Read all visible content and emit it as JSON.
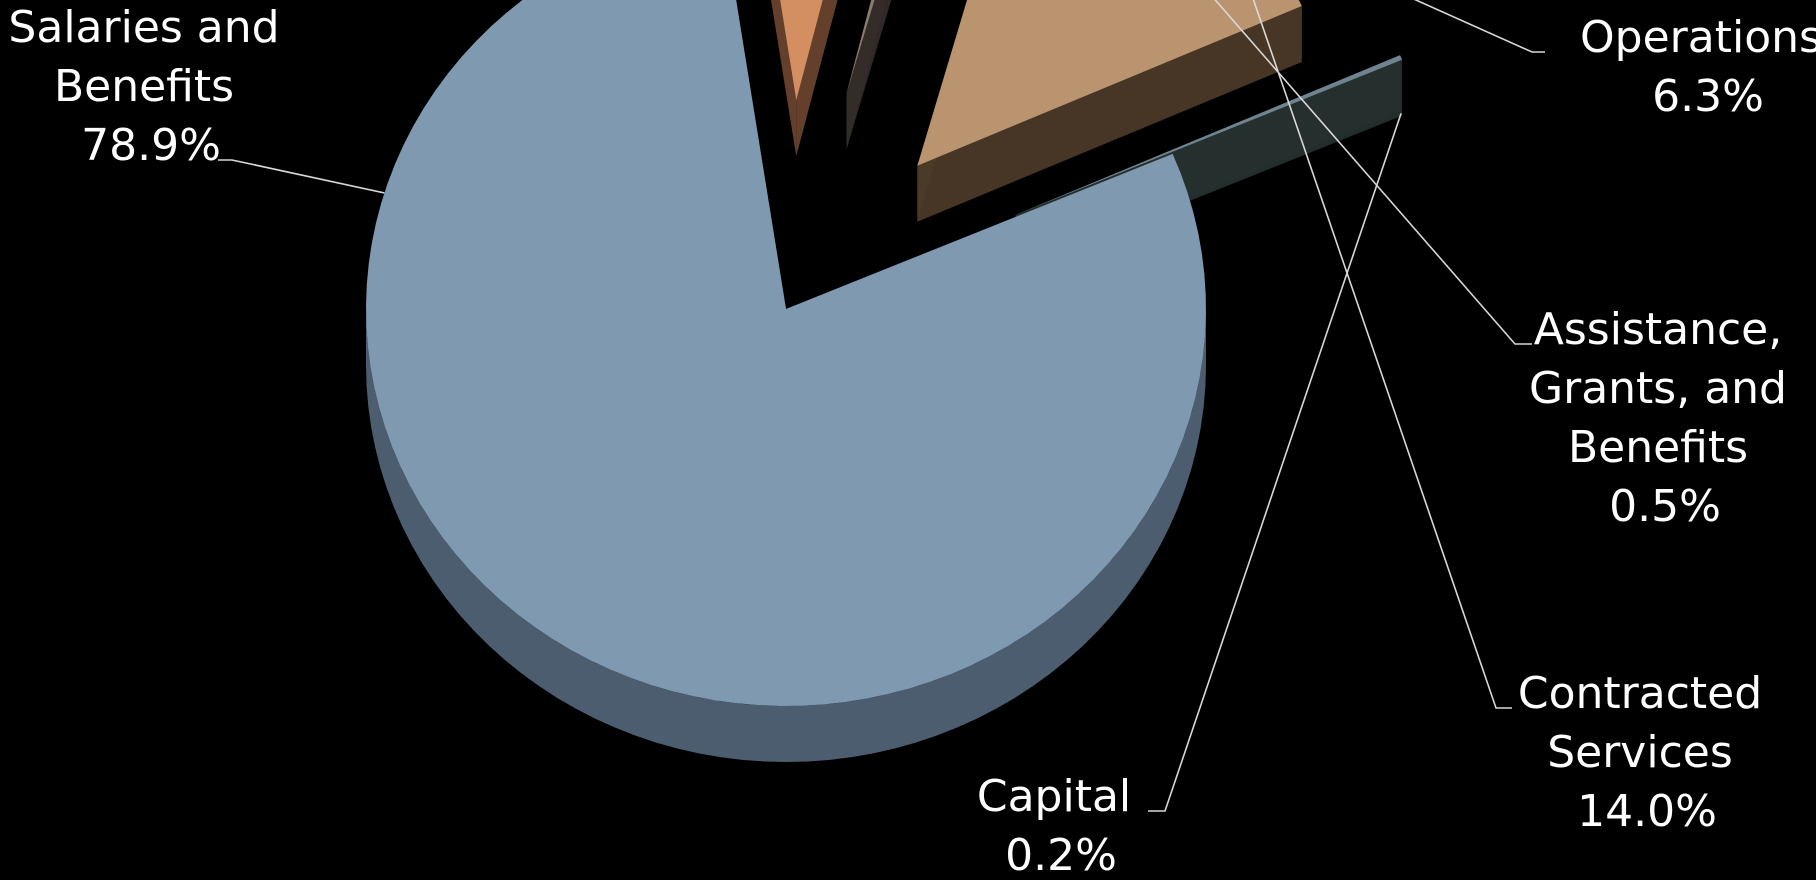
{
  "chart_data": {
    "type": "pie",
    "style": "3d-exploded",
    "title": "",
    "slices": [
      {
        "label_lines": [
          "Salaries and",
          "Benefits"
        ],
        "value_text": "78.9%",
        "value": 78.9,
        "color": "#7f99b1",
        "side": "#4c5d70"
      },
      {
        "label_lines": [
          "Operations"
        ],
        "value_text": "6.3%",
        "value": 6.3,
        "color": "#d38f61",
        "side": "#6d4530"
      },
      {
        "label_lines": [
          "Assistance,",
          "Grants, and",
          "Benefits"
        ],
        "value_text": "0.5%",
        "value": 0.5,
        "color": "#8c7a6c",
        "side": "#342c29"
      },
      {
        "label_lines": [
          "Contracted",
          "Services"
        ],
        "value_text": "14.0%",
        "value": 14.0,
        "color": "#b9946f",
        "side": "#4d3b28"
      },
      {
        "label_lines": [
          "Capital"
        ],
        "value_text": "0.2%",
        "value": 0.2,
        "color": "#6f8490",
        "side": "#26312f"
      }
    ]
  }
}
